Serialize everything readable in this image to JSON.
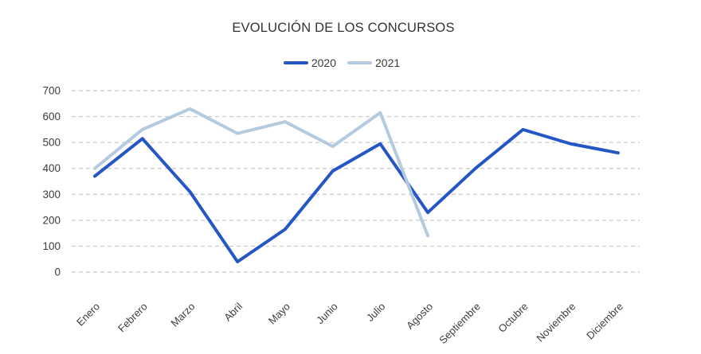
{
  "title": "EVOLUCIÓN DE LOS CONCURSOS",
  "chart_data": {
    "type": "line",
    "title": "EVOLUCIÓN DE LOS CONCURSOS",
    "categories": [
      "Enero",
      "Febrero",
      "Marzo",
      "Abril",
      "Mayo",
      "Junio",
      "Julio",
      "Agosto",
      "Septiembre",
      "Octubre",
      "Noviembre",
      "Diciembre"
    ],
    "series": [
      {
        "name": "2020",
        "color": "#2457C5",
        "values": [
          370,
          515,
          310,
          40,
          165,
          390,
          495,
          230,
          400,
          550,
          495,
          460
        ]
      },
      {
        "name": "2021",
        "color": "#B3CADF",
        "values": [
          400,
          550,
          630,
          535,
          580,
          485,
          615,
          140,
          null,
          null,
          null,
          null
        ]
      }
    ],
    "ylim": [
      0,
      700
    ],
    "yticks": [
      0,
      100,
      200,
      300,
      400,
      500,
      600,
      700
    ],
    "grid": "horizontal dashed",
    "gridline_color": "#c8c8c8",
    "legend_position": "top",
    "xlabel": "",
    "ylabel": ""
  }
}
